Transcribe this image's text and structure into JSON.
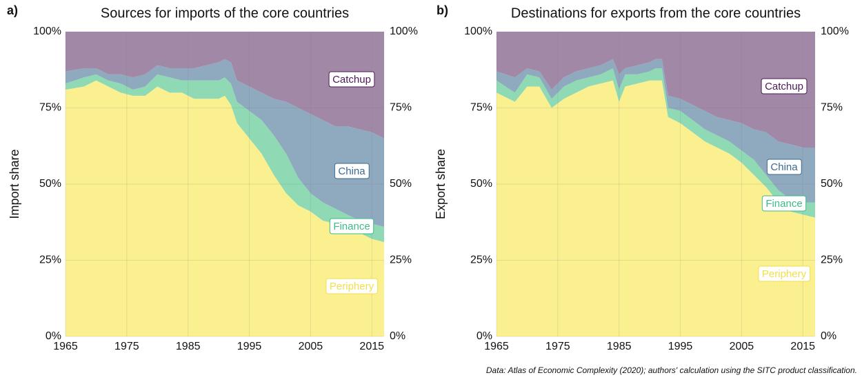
{
  "chart_data": [
    {
      "type": "stacked_area",
      "panel": "a)",
      "title": "Sources for imports of the core countries",
      "y_label": "Import share",
      "x": [
        1965,
        1968,
        1970,
        1972,
        1974,
        1976,
        1978,
        1980,
        1982,
        1984,
        1986,
        1988,
        1990,
        1991,
        1992,
        1993,
        1995,
        1997,
        1999,
        2001,
        2003,
        2005,
        2007,
        2009,
        2011,
        2013,
        2015,
        2017
      ],
      "series": [
        {
          "name": "Periphery",
          "color": "#fbf08f",
          "label_color": "#f2df4a",
          "values": [
            81,
            82,
            84,
            82,
            80,
            79,
            79,
            82,
            80,
            80,
            78,
            78,
            78,
            79,
            76,
            70,
            65,
            60,
            53,
            47,
            43,
            41,
            38,
            37,
            36,
            34,
            32,
            31
          ]
        },
        {
          "name": "Finance",
          "color": "#8fd9b5",
          "label_color": "#3dbb87",
          "values": [
            2,
            3,
            2,
            2,
            3,
            2,
            3,
            4,
            5,
            4,
            6,
            6,
            6,
            6,
            7,
            7,
            9,
            11,
            13,
            13,
            9,
            6,
            6,
            5,
            4,
            4,
            5,
            5
          ]
        },
        {
          "name": "China",
          "color": "#8fa9be",
          "label_color": "#3b6a8f",
          "values": [
            4,
            3,
            2,
            2,
            3,
            4,
            4,
            3,
            3,
            4,
            4,
            5,
            6,
            6,
            7,
            7,
            8,
            9,
            12,
            17,
            23,
            26,
            27,
            27,
            29,
            30,
            30,
            29
          ]
        },
        {
          "name": "Catchup",
          "color": "#a288a7",
          "label_color": "#4b1a56",
          "values": [
            13,
            12,
            12,
            14,
            14,
            15,
            14,
            11,
            12,
            12,
            12,
            11,
            10,
            9,
            10,
            16,
            18,
            20,
            22,
            23,
            25,
            27,
            29,
            31,
            31,
            32,
            33,
            35
          ]
        }
      ],
      "xlim": [
        1965,
        2017
      ],
      "xticks": [
        1965,
        1975,
        1985,
        1995,
        2005,
        2015
      ],
      "ylim": [
        0,
        100
      ],
      "yticks": [
        {
          "value": 0,
          "label": "0%"
        },
        {
          "value": 25,
          "label": "25%"
        },
        {
          "value": 50,
          "label": "50%"
        },
        {
          "value": 75,
          "label": "75%"
        },
        {
          "value": 100,
          "label": "100%"
        }
      ],
      "grid": true
    },
    {
      "type": "stacked_area",
      "panel": "b)",
      "title": "Destinations for exports from the core countries",
      "y_label": "Export share",
      "x": [
        1965,
        1968,
        1970,
        1972,
        1974,
        1976,
        1978,
        1980,
        1982,
        1984,
        1985,
        1986,
        1988,
        1990,
        1991,
        1992,
        1993,
        1995,
        1997,
        1999,
        2001,
        2003,
        2005,
        2007,
        2009,
        2011,
        2013,
        2015,
        2017
      ],
      "series": [
        {
          "name": "Periphery",
          "color": "#fbf08f",
          "label_color": "#f2df4a",
          "values": [
            80,
            77,
            82,
            82,
            75,
            78,
            80,
            82,
            83,
            84,
            77,
            82,
            83,
            84,
            84,
            84,
            72,
            70,
            67,
            64,
            62,
            60,
            57,
            53,
            49,
            44,
            41,
            40,
            39
          ]
        },
        {
          "name": "Finance",
          "color": "#8fd9b5",
          "label_color": "#3dbb87",
          "values": [
            4,
            3,
            4,
            3,
            3,
            4,
            4,
            3,
            3,
            4,
            4,
            4,
            3,
            3,
            4,
            4,
            3,
            4,
            4,
            4,
            4,
            4,
            4,
            5,
            4,
            4,
            4,
            4,
            5
          ]
        },
        {
          "name": "China",
          "color": "#8fa9be",
          "label_color": "#3b6a8f",
          "values": [
            3,
            5,
            2,
            2,
            3,
            3,
            3,
            3,
            3,
            3,
            5,
            2,
            3,
            3,
            3,
            3,
            4,
            4,
            5,
            6,
            6,
            7,
            9,
            10,
            14,
            16,
            18,
            18,
            18
          ]
        },
        {
          "name": "Catchup",
          "color": "#a288a7",
          "label_color": "#4b1a56",
          "values": [
            13,
            15,
            12,
            13,
            19,
            15,
            13,
            12,
            11,
            9,
            14,
            12,
            11,
            10,
            9,
            9,
            21,
            22,
            24,
            26,
            28,
            29,
            30,
            32,
            33,
            36,
            37,
            38,
            38
          ]
        }
      ],
      "xlim": [
        1965,
        2017
      ],
      "xticks": [
        1965,
        1975,
        1985,
        1995,
        2005,
        2015
      ],
      "ylim": [
        0,
        100
      ],
      "yticks": [
        {
          "value": 0,
          "label": "0%"
        },
        {
          "value": 25,
          "label": "25%"
        },
        {
          "value": 50,
          "label": "50%"
        },
        {
          "value": 75,
          "label": "75%"
        },
        {
          "value": 100,
          "label": "100%"
        }
      ],
      "grid": true
    }
  ],
  "source": "Data: Atlas of Economic Complexity (2020); authors' calculation using the SITC product classification."
}
